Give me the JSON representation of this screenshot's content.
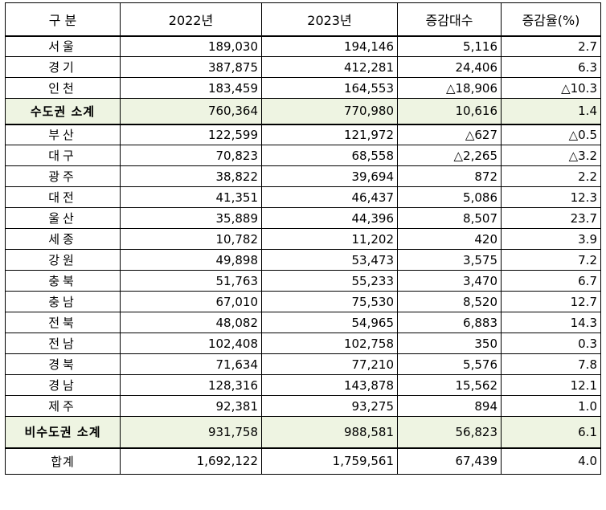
{
  "header": {
    "col_region": "구 분",
    "col_2022": "2022년",
    "col_2023": "2023년",
    "col_change": "증감대수",
    "col_rate": "증감율(%)"
  },
  "rows": [
    {
      "region": "서울",
      "y2022": "189,030",
      "y2023": "194,146",
      "change": "5,116",
      "rate": "2.7"
    },
    {
      "region": "경기",
      "y2022": "387,875",
      "y2023": "412,281",
      "change": "24,406",
      "rate": "6.3"
    },
    {
      "region": "인천",
      "y2022": "183,459",
      "y2023": "164,553",
      "change": "△18,906",
      "rate": "△10.3"
    },
    {
      "region": "수도권 소계",
      "y2022": "760,364",
      "y2023": "770,980",
      "change": "10,616",
      "rate": "1.4"
    },
    {
      "region": "부산",
      "y2022": "122,599",
      "y2023": "121,972",
      "change": "△627",
      "rate": "△0.5"
    },
    {
      "region": "대구",
      "y2022": "70,823",
      "y2023": "68,558",
      "change": "△2,265",
      "rate": "△3.2"
    },
    {
      "region": "광주",
      "y2022": "38,822",
      "y2023": "39,694",
      "change": "872",
      "rate": "2.2"
    },
    {
      "region": "대전",
      "y2022": "41,351",
      "y2023": "46,437",
      "change": "5,086",
      "rate": "12.3"
    },
    {
      "region": "울산",
      "y2022": "35,889",
      "y2023": "44,396",
      "change": "8,507",
      "rate": "23.7"
    },
    {
      "region": "세종",
      "y2022": "10,782",
      "y2023": "11,202",
      "change": "420",
      "rate": "3.9"
    },
    {
      "region": "강원",
      "y2022": "49,898",
      "y2023": "53,473",
      "change": "3,575",
      "rate": "7.2"
    },
    {
      "region": "충북",
      "y2022": "51,763",
      "y2023": "55,233",
      "change": "3,470",
      "rate": "6.7"
    },
    {
      "region": "충남",
      "y2022": "67,010",
      "y2023": "75,530",
      "change": "8,520",
      "rate": "12.7"
    },
    {
      "region": "전북",
      "y2022": "48,082",
      "y2023": "54,965",
      "change": "6,883",
      "rate": "14.3"
    },
    {
      "region": "전남",
      "y2022": "102,408",
      "y2023": "102,758",
      "change": "350",
      "rate": "0.3"
    },
    {
      "region": "경북",
      "y2022": "71,634",
      "y2023": "77,210",
      "change": "5,576",
      "rate": "7.8"
    },
    {
      "region": "경남",
      "y2022": "128,316",
      "y2023": "143,878",
      "change": "15,562",
      "rate": "12.1"
    },
    {
      "region": "제주",
      "y2022": "92,381",
      "y2023": "93,275",
      "change": "894",
      "rate": "1.0"
    },
    {
      "region": "비수도권 소계",
      "y2022": "931,758",
      "y2023": "988,581",
      "change": "56,823",
      "rate": "6.1"
    },
    {
      "region": "합계",
      "y2022": "1,692,122",
      "y2023": "1,759,561",
      "change": "67,439",
      "rate": "4.0"
    }
  ],
  "colors": {
    "subtotal_bg": "#eef4e2",
    "border": "#000000"
  }
}
